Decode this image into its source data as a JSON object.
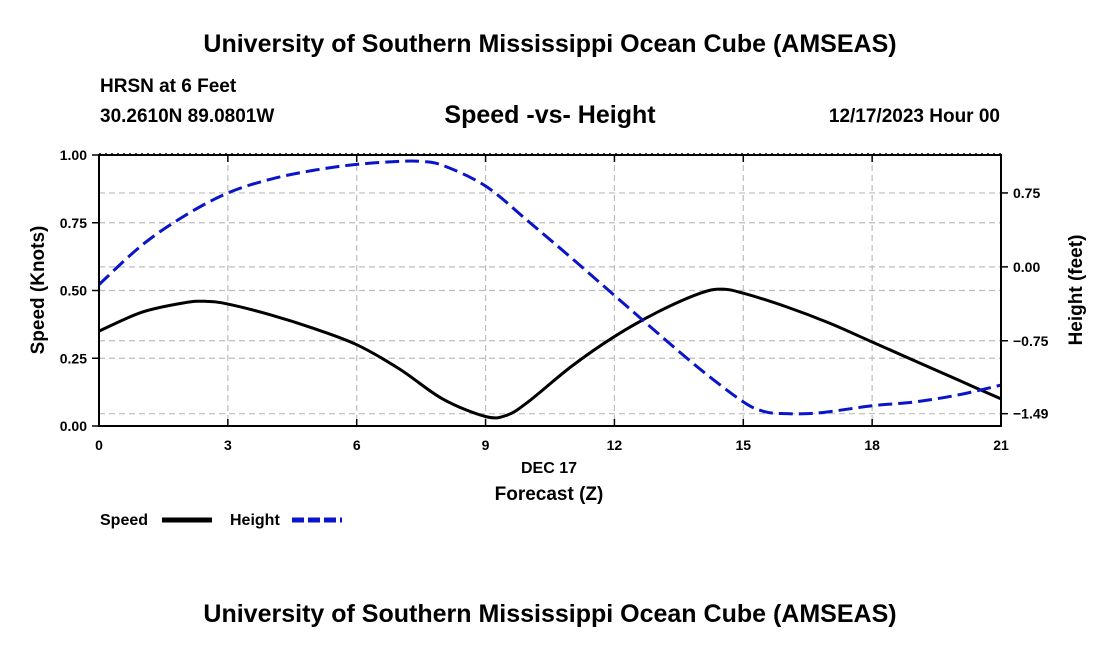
{
  "header": {
    "title": "University of Southern Mississippi Ocean Cube (AMSEAS)",
    "station": "HRSN at 6 Feet",
    "coords": "30.2610N  89.0801W",
    "date": "12/17/2023 Hour 00"
  },
  "footer": {
    "title": "University of Southern Mississippi Ocean Cube (AMSEAS)"
  },
  "chart_data": {
    "type": "line",
    "title": "Speed -vs- Height",
    "xlabel": "Forecast (Z)",
    "xlabel_date": "DEC 17",
    "ylabel": "Speed (Knots)",
    "y2label": "Height (feet)",
    "xlim": [
      0,
      21
    ],
    "ylim": [
      0,
      1.0
    ],
    "y2lim": [
      -1.615,
      1.135
    ],
    "xticks": [
      0,
      3,
      6,
      9,
      12,
      15,
      18,
      21
    ],
    "xtick_labels": [
      "0",
      "3",
      "6",
      "9",
      "12",
      "15",
      "18",
      "21"
    ],
    "yticks": [
      0,
      0.25,
      0.5,
      0.75,
      1.0
    ],
    "ytick_labels": [
      "0.00",
      "0.25",
      "0.50",
      "0.75",
      "1.00"
    ],
    "y2ticks": [
      -1.49,
      -0.75,
      0.0,
      0.75
    ],
    "y2tick_labels": [
      "−1.49",
      "−0.75",
      "0.00",
      "0.75"
    ],
    "grid": true,
    "legend": [
      {
        "label": "Speed",
        "color": "#000000",
        "dash": "solid"
      },
      {
        "label": "Height",
        "color": "#0a14c8",
        "dash": "dashed"
      }
    ],
    "series": [
      {
        "name": "Speed",
        "axis": "left",
        "color": "#000000",
        "x": [
          0,
          1,
          2,
          2.5,
          3,
          4,
          5,
          6,
          7,
          8,
          9,
          9.5,
          10,
          11,
          12,
          13,
          14,
          14.5,
          15,
          16,
          17,
          18,
          19,
          20,
          21
        ],
        "y": [
          0.35,
          0.42,
          0.455,
          0.46,
          0.45,
          0.41,
          0.36,
          0.3,
          0.21,
          0.1,
          0.035,
          0.04,
          0.09,
          0.22,
          0.33,
          0.42,
          0.49,
          0.505,
          0.49,
          0.44,
          0.38,
          0.31,
          0.24,
          0.17,
          0.1
        ]
      },
      {
        "name": "Height",
        "axis": "right",
        "color": "#0a14c8",
        "x": [
          0,
          1,
          2,
          3,
          4,
          5,
          6,
          7,
          7.5,
          8,
          9,
          10,
          11,
          12,
          13,
          14,
          15,
          15.5,
          16,
          16.5,
          17,
          18,
          19,
          20,
          21
        ],
        "y": [
          -0.18,
          0.22,
          0.52,
          0.75,
          0.89,
          0.98,
          1.04,
          1.07,
          1.07,
          1.03,
          0.82,
          0.46,
          0.09,
          -0.29,
          -0.67,
          -1.04,
          -1.37,
          -1.47,
          -1.49,
          -1.49,
          -1.47,
          -1.41,
          -1.37,
          -1.3,
          -1.2
        ]
      }
    ]
  }
}
